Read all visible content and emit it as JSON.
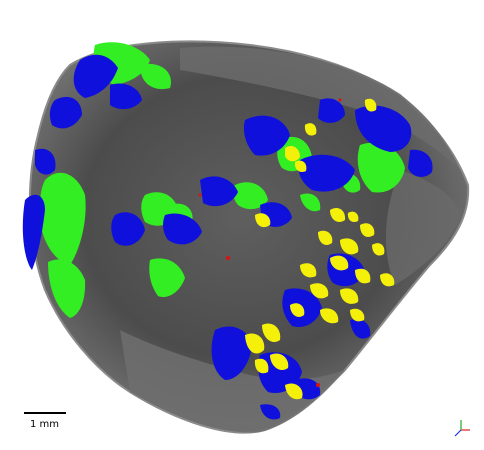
{
  "image": {
    "scale_bar": {
      "label": "1 mm"
    },
    "colors": {
      "background": "#ffffff",
      "rock_dark": "#3a3a3a",
      "rock_mid": "#5a5a5a",
      "rock_light": "#8a8a8a",
      "phase_green": "#33ee22",
      "phase_blue": "#1010dd",
      "phase_yellow": "#f5f00a",
      "phase_red": "#dd1111"
    },
    "axes_gizmo": {
      "x_color": "#dd2222",
      "y_color": "#22aa22",
      "z_color": "#2233dd"
    }
  }
}
